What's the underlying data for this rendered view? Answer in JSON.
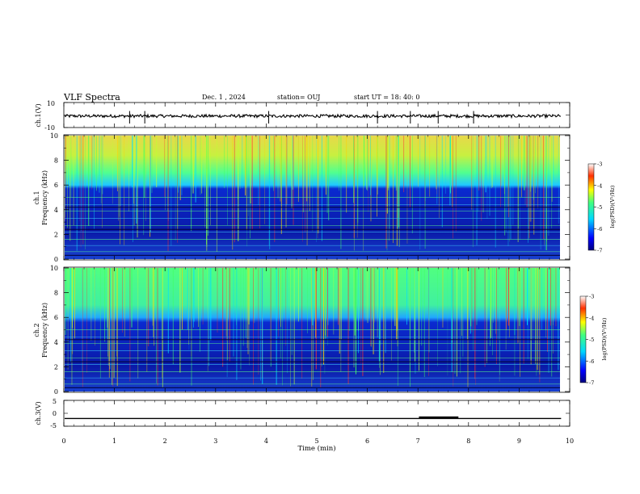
{
  "header": {
    "title": "VLF Spectra",
    "date": "Dec. 1 , 2024",
    "station": "station= OUJ",
    "start": "start  UT  =   18: 40: 0"
  },
  "chart_data": [
    {
      "type": "line",
      "ylabel": "ch.1(V)",
      "ylim": [
        -10,
        10
      ],
      "yticks": [
        "10",
        "-10"
      ],
      "x_range_min": [
        0,
        9.83
      ],
      "baseline": -0.8
    },
    {
      "type": "heatmap",
      "ylabel_line1": "ch.1",
      "ylabel_line2": "Frequency  (kHz)",
      "ylim": [
        0,
        10
      ],
      "yticks": [
        "10",
        "8",
        "6",
        "4",
        "2",
        "0"
      ],
      "colorbar": {
        "label": "log(PSD)(V²/Hz)",
        "ticks": [
          "-3",
          "-4",
          "-5",
          "-6",
          "-7"
        ],
        "range": [
          -7,
          -3
        ]
      },
      "blue_edge_khz": 6.0,
      "band_top_khz": 9.0
    },
    {
      "type": "heatmap",
      "ylabel_line1": "ch.2",
      "ylabel_line2": "Frequency  (kHz)",
      "ylim": [
        0,
        10
      ],
      "yticks": [
        "10",
        "8",
        "6",
        "4",
        "2",
        "0"
      ],
      "colorbar": {
        "label": "log(PSD)(V²/Hz)",
        "ticks": [
          "-3",
          "-4",
          "-5",
          "-6",
          "-7"
        ],
        "range": [
          -7,
          -3
        ]
      },
      "blue_edge_khz": 5.8,
      "band_top_khz": 8.6
    },
    {
      "type": "line",
      "ylabel": "ch.3(V)",
      "ylim": [
        -5,
        5
      ],
      "yticks": [
        "5",
        "0",
        "-5"
      ],
      "baseline": -2,
      "pulse": {
        "x": [
          7.02,
          7.8
        ],
        "y": -1.7
      }
    }
  ],
  "xaxis": {
    "label": "Time  (min)",
    "range": [
      0,
      10
    ],
    "ticks": [
      "0",
      "1",
      "2",
      "3",
      "4",
      "5",
      "6",
      "7",
      "8",
      "9",
      "10"
    ]
  }
}
